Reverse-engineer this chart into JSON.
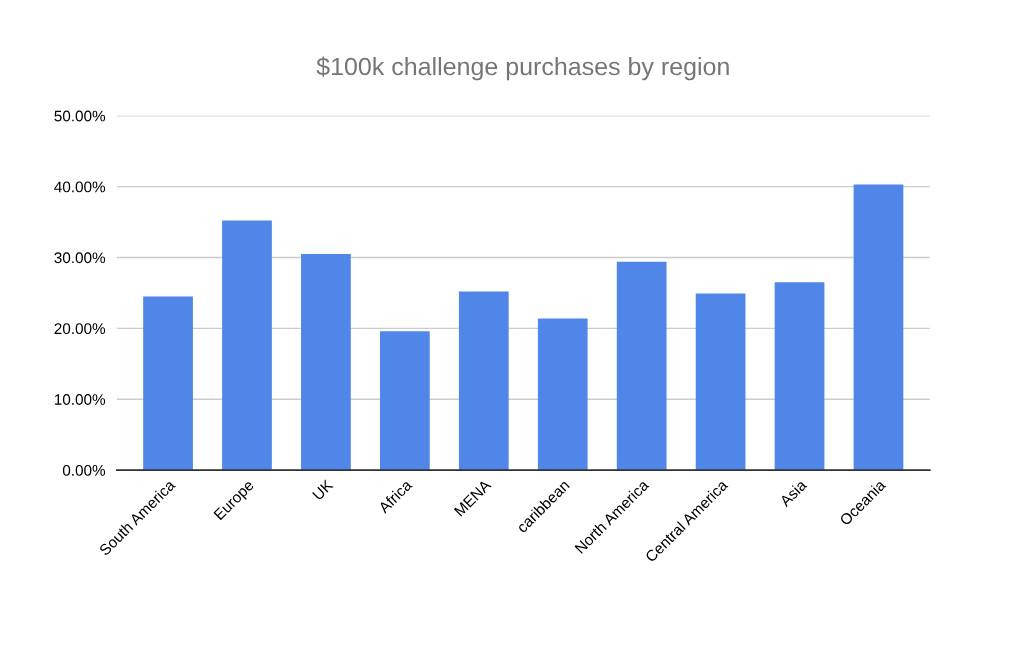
{
  "chart_data": {
    "type": "bar",
    "title": "$100k challenge purchases by region",
    "categories": [
      "South America",
      "Europe",
      "UK",
      "Africa",
      "MENA",
      "caribbean",
      "North America",
      "Central America",
      "Asia",
      "Oceania"
    ],
    "values": [
      24.5,
      35.2,
      30.5,
      19.6,
      25.2,
      21.4,
      29.4,
      24.9,
      26.5,
      40.3
    ],
    "color": "#4f86e8",
    "ylim": [
      0,
      50
    ],
    "yticks": [
      {
        "value": 0,
        "label": "0.00%"
      },
      {
        "value": 10,
        "label": "10.00%"
      },
      {
        "value": 20,
        "label": "20.00%"
      },
      {
        "value": 30,
        "label": "30.00%"
      },
      {
        "value": 40,
        "label": "40.00%"
      },
      {
        "value": 50,
        "label": "50.00%"
      }
    ],
    "grid": "y"
  }
}
